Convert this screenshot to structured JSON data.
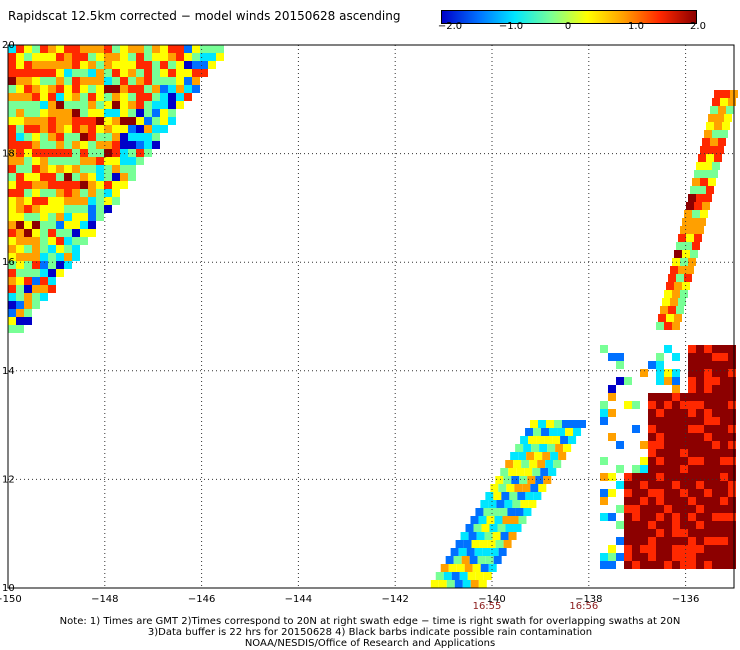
{
  "title": "Rapidscat 12.5km corrected − model winds 20150628 ascending",
  "colorbar": {
    "ticks": [
      "−2.0",
      "−1.0",
      "0",
      "1.0",
      "2.0"
    ],
    "colors": [
      "#0000c8",
      "#0070ff",
      "#00e6ff",
      "#78ff96",
      "#ffff00",
      "#ffa000",
      "#ff2800",
      "#8c0000"
    ]
  },
  "map": {
    "x_ticks": [
      "−150",
      "−148",
      "−146",
      "−144",
      "−142",
      "−140",
      "−138",
      "−136"
    ],
    "y_ticks": [
      "10",
      "12",
      "14",
      "16",
      "18",
      "20"
    ],
    "lon_range": [
      -150,
      -135
    ],
    "lat_range": [
      10,
      20
    ],
    "gridlines": true,
    "swath_times": [
      {
        "time": "16:55",
        "lon": -140
      },
      {
        "time": "16:56",
        "lon": -138
      }
    ],
    "time_color": "#8b1a1a"
  },
  "footer": {
    "line1": "Note: 1) Times are GMT 2)Times correspond to 20N at right swath edge − time is right swath for overlapping swaths at 20N",
    "line2": "3)Data buffer is 22 hrs for 20150628 4) Black barbs indicate possible rain contamination",
    "line3": "NOAA/NESDIS/Office of Research and Applications"
  }
}
